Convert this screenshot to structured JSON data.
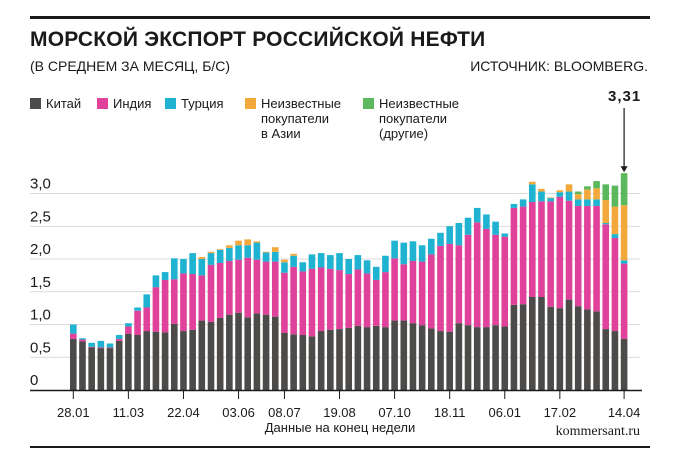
{
  "header": {
    "title": "МОРСКОЙ ЭКСПОРТ РОССИЙСКОЙ НЕФТИ",
    "subtitle": "(В СРЕДНЕМ ЗА МЕСЯЦ, Б/С)",
    "source": "ИСТОЧНИК: BLOOMBERG."
  },
  "footer": {
    "site": "kommersant.ru"
  },
  "colors": {
    "china": "#4d4b49",
    "india": "#e0419a",
    "turkey": "#1fb3d1",
    "unknown_asia": "#f3a83b",
    "unknown_other": "#5cb85c"
  },
  "chart_data": {
    "type": "bar",
    "stacked": true,
    "xlabel": "Данные на конец недели",
    "ylabel": "",
    "ylim": [
      0,
      3.4
    ],
    "yticks": [
      0,
      0.5,
      1.0,
      1.5,
      2.0,
      2.5,
      3.0
    ],
    "ytick_labels": [
      "0",
      "0,5",
      "1,0",
      "1,5",
      "2,0",
      "2,5",
      "3,0"
    ],
    "xtick_labels": [
      {
        "index": 0,
        "label": "28.01"
      },
      {
        "index": 6,
        "label": "11.03"
      },
      {
        "index": 12,
        "label": "22.04"
      },
      {
        "index": 18,
        "label": "03.06"
      },
      {
        "index": 23,
        "label": "08.07"
      },
      {
        "index": 29,
        "label": "19.08"
      },
      {
        "index": 35,
        "label": "07.10"
      },
      {
        "index": 41,
        "label": "18.11"
      },
      {
        "index": 47,
        "label": "06.01"
      },
      {
        "index": 53,
        "label": "17.02"
      },
      {
        "index": 60,
        "label": "14.04"
      }
    ],
    "legend_placement": "top-left",
    "annotations": [
      {
        "index": 60,
        "text": "3,31"
      }
    ],
    "series": [
      {
        "name": "Китай",
        "key": "china",
        "values": [
          0.78,
          0.74,
          0.65,
          0.64,
          0.64,
          0.75,
          0.86,
          0.84,
          0.9,
          0.89,
          0.88,
          1.01,
          0.9,
          0.92,
          1.06,
          1.04,
          1.1,
          1.15,
          1.18,
          1.11,
          1.17,
          1.15,
          1.12,
          0.87,
          0.85,
          0.84,
          0.82,
          0.9,
          0.92,
          0.93,
          0.95,
          0.98,
          0.96,
          0.98,
          0.96,
          1.06,
          1.06,
          1.02,
          0.99,
          0.94,
          0.9,
          0.89,
          1.02,
          0.99,
          0.96,
          0.96,
          0.99,
          0.97,
          1.3,
          1.31,
          1.42,
          1.42,
          1.27,
          1.25,
          1.38,
          1.28,
          1.23,
          1.2,
          0.93,
          0.9,
          0.78
        ]
      },
      {
        "name": "Индия",
        "key": "india",
        "values": [
          0.08,
          0.03,
          0.01,
          0.01,
          0.01,
          0.03,
          0.11,
          0.37,
          0.36,
          0.68,
          0.8,
          0.68,
          0.88,
          0.85,
          0.69,
          0.87,
          0.84,
          0.82,
          0.81,
          0.91,
          0.82,
          0.81,
          0.84,
          0.92,
          1.03,
          0.97,
          1.03,
          0.97,
          0.93,
          0.9,
          0.82,
          0.86,
          0.82,
          0.7,
          0.84,
          0.95,
          0.86,
          0.95,
          0.97,
          1.13,
          1.3,
          1.34,
          1.19,
          1.38,
          1.6,
          1.5,
          1.38,
          1.37,
          1.48,
          1.49,
          1.45,
          1.46,
          1.61,
          1.7,
          1.51,
          1.53,
          1.58,
          1.61,
          1.6,
          1.42,
          1.15
        ]
      },
      {
        "name": "Турция",
        "key": "turkey",
        "values": [
          0.14,
          0.02,
          0.06,
          0.1,
          0.06,
          0.06,
          0.05,
          0.05,
          0.2,
          0.18,
          0.12,
          0.32,
          0.22,
          0.32,
          0.25,
          0.18,
          0.2,
          0.2,
          0.22,
          0.19,
          0.26,
          0.14,
          0.15,
          0.16,
          0.17,
          0.14,
          0.22,
          0.22,
          0.21,
          0.26,
          0.23,
          0.22,
          0.2,
          0.2,
          0.25,
          0.27,
          0.33,
          0.3,
          0.25,
          0.24,
          0.2,
          0.27,
          0.34,
          0.26,
          0.22,
          0.22,
          0.2,
          0.05,
          0.06,
          0.11,
          0.27,
          0.15,
          0.05,
          0.07,
          0.14,
          0.1,
          0.1,
          0.1,
          0.02,
          0.06,
          0.05
        ]
      },
      {
        "name": "Неизвестные\nпокупатели\nв Азии",
        "key": "unknown_asia",
        "values": [
          0,
          0,
          0,
          0,
          0,
          0,
          0,
          0,
          0,
          0,
          0,
          0,
          0,
          0,
          0.03,
          0.02,
          0.01,
          0.04,
          0.07,
          0.09,
          0.02,
          0.01,
          0.07,
          0.04,
          0.03,
          0,
          0,
          0,
          0,
          0,
          0,
          0,
          0,
          0,
          0,
          0,
          0,
          0,
          0,
          0,
          0,
          0,
          0,
          0,
          0,
          0,
          0,
          0,
          0,
          0,
          0.04,
          0.04,
          0.01,
          0.03,
          0.11,
          0.08,
          0.15,
          0.17,
          0.35,
          0.42,
          0.84
        ]
      },
      {
        "name": "Неизвестные\nпокупатели\n(другие)",
        "key": "unknown_other",
        "values": [
          0,
          0,
          0,
          0,
          0,
          0,
          0,
          0,
          0,
          0,
          0,
          0,
          0,
          0,
          0,
          0,
          0,
          0,
          0,
          0,
          0,
          0,
          0,
          0,
          0,
          0,
          0,
          0,
          0,
          0,
          0,
          0,
          0,
          0,
          0,
          0,
          0,
          0,
          0,
          0,
          0,
          0,
          0,
          0,
          0,
          0,
          0,
          0,
          0,
          0,
          0,
          0,
          0,
          0,
          0,
          0.04,
          0.05,
          0.11,
          0.24,
          0.32,
          0.49
        ]
      }
    ]
  }
}
